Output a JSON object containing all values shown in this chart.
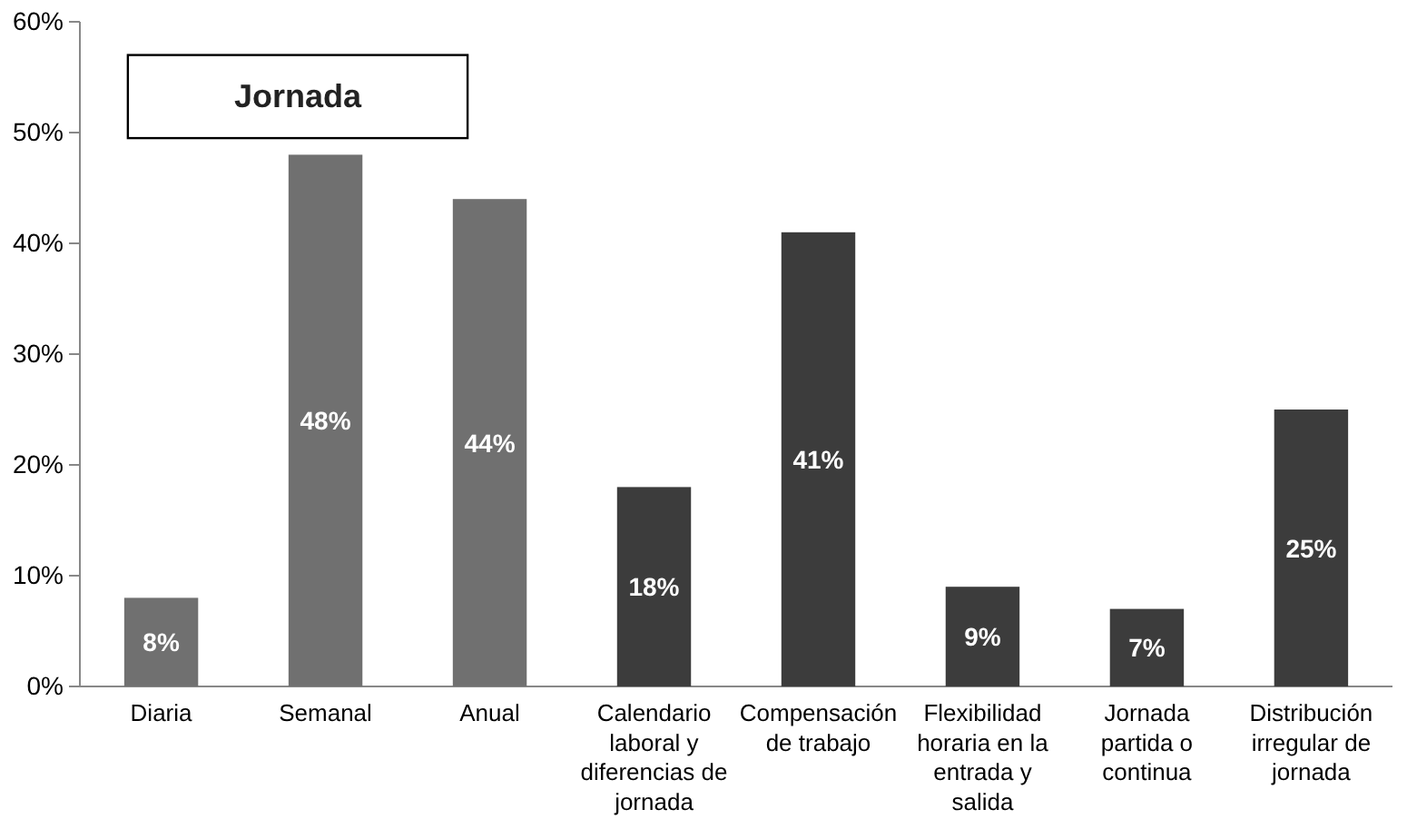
{
  "chart_data": {
    "type": "bar",
    "title": "Jornada",
    "categories": [
      "Diaria",
      "Semanal",
      "Anual",
      "Calendario laboral y diferencias de jornada",
      "Compensación de trabajo",
      "Flexibilidad horaria en la entrada y salida",
      "Jornada partida o continua",
      "Distribución irregular de jornada"
    ],
    "values": [
      8,
      48,
      44,
      18,
      41,
      9,
      7,
      25
    ],
    "value_labels": [
      "8%",
      "48%",
      "44%",
      "18%",
      "41%",
      "9%",
      "7%",
      "25%"
    ],
    "colors": [
      "#707070",
      "#707070",
      "#707070",
      "#3c3c3c",
      "#3c3c3c",
      "#3c3c3c",
      "#3c3c3c",
      "#3c3c3c"
    ],
    "ylim": [
      0,
      60
    ],
    "yticks": [
      {
        "value": 0,
        "label": "0%"
      },
      {
        "value": 10,
        "label": "10%"
      },
      {
        "value": 20,
        "label": "20%"
      },
      {
        "value": 30,
        "label": "30%"
      },
      {
        "value": 40,
        "label": "40%"
      },
      {
        "value": 50,
        "label": "50%"
      },
      {
        "value": 60,
        "label": "60%"
      }
    ],
    "grid": false
  }
}
